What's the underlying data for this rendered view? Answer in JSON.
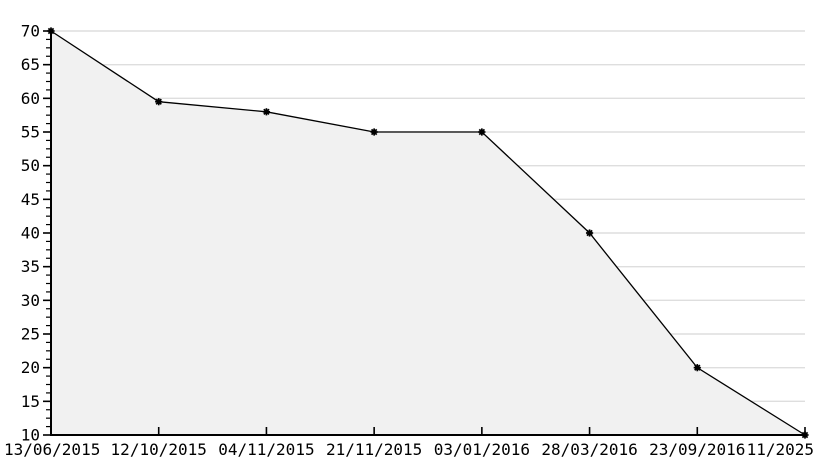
{
  "chart_data": {
    "type": "area",
    "title": "",
    "xlabel": "",
    "ylabel": "",
    "categories": [
      "13/06/2015",
      "12/10/2015",
      "04/11/2015",
      "21/11/2015",
      "03/01/2016",
      "28/03/2016",
      "23/09/2016",
      "11/2025"
    ],
    "values": [
      70,
      59.5,
      58,
      55,
      55,
      40,
      20,
      10
    ],
    "ylim": [
      10,
      70
    ],
    "y_major_step": 5,
    "y_minor_step": 1.25,
    "y_tick_labels": [
      "70",
      "65",
      "60",
      "55",
      "50",
      "45",
      "40",
      "35",
      "30",
      "25",
      "20",
      "15",
      "10"
    ],
    "grid": "horizontal-major",
    "legend": "none",
    "marker": "star",
    "colors": {
      "background": "#ffffff",
      "line": "#000000",
      "fill": "#f1f1f1",
      "grid": "#dedede",
      "axis": "#000000",
      "text": "#000000"
    }
  }
}
